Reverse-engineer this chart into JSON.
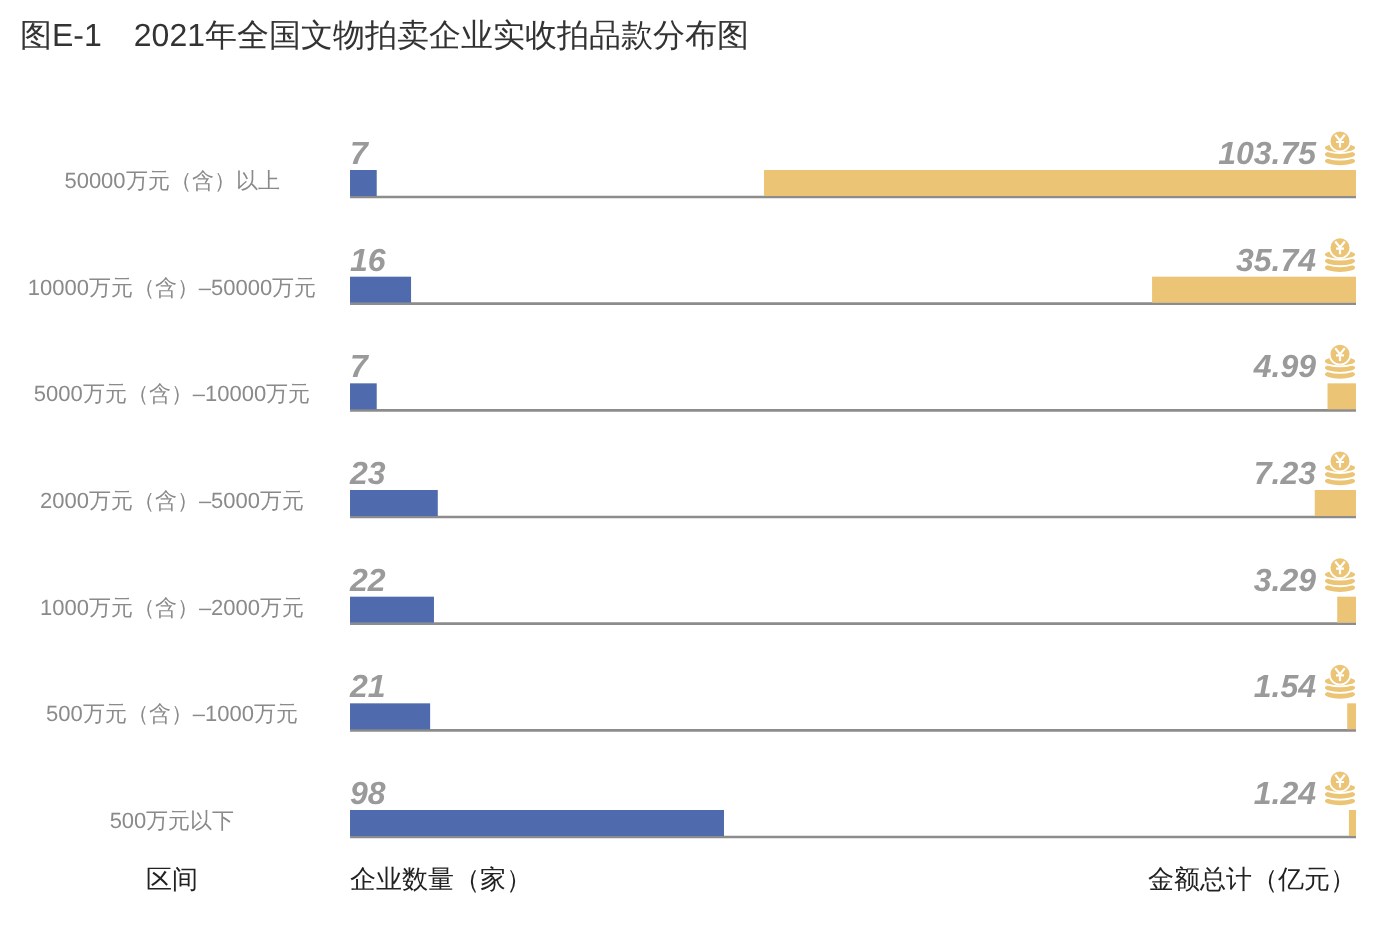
{
  "chart_data": [
    {
      "type": "bar",
      "orientation": "horizontal",
      "title": "图E-1　2021年全国文物拍卖企业实收拍品款分布图",
      "ylabel": "区间",
      "xlabel": "企业数量（家）",
      "categories": [
        "50000万元（含）以上",
        "10000万元（含）–50000万元",
        "5000万元（含）–10000万元",
        "2000万元（含）–5000万元",
        "1000万元（含）–2000万元",
        "500万元（含）–1000万元",
        "500万元以下"
      ],
      "values": [
        7,
        16,
        7,
        23,
        22,
        21,
        98
      ],
      "color": "#4f6bad",
      "data_labels": true,
      "tick_labels": "y"
    },
    {
      "type": "bar",
      "orientation": "horizontal",
      "xlabel": "金额总计（亿元）",
      "categories": [
        null,
        null,
        null,
        null,
        null,
        null,
        null
      ],
      "values": [
        103.75,
        35.74,
        4.99,
        7.23,
        3.29,
        1.54,
        1.24
      ],
      "color": "#ebc476",
      "data_labels": true
    }
  ]
}
